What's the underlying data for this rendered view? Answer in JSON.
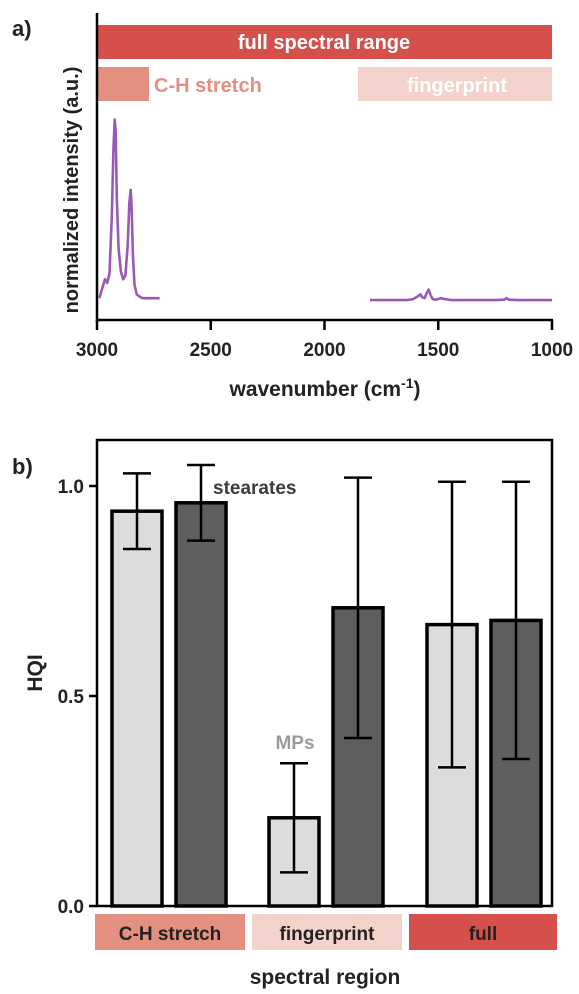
{
  "colors": {
    "full": "#d5504a",
    "ch": "#e49080",
    "fingerprint": "#f4d2cc",
    "spectrum": "#9b59b6",
    "mp_bar": "#dcdcdc",
    "stearate_bar": "#5d5f5e",
    "mp_label": "#9b9b9b",
    "stearate_label": "#3c3c3c"
  },
  "panel_a": {
    "label": "a)",
    "regions": {
      "full": "full spectral range",
      "ch": "C-H stretch",
      "fingerprint": "fingerprint"
    },
    "chart_data": {
      "type": "line",
      "xlabel": "wavenumber (cm",
      "xlabel_sup": "-1",
      "xlabel_close": ")",
      "ylabel": "normalized intensity (a.u.)",
      "xlim": [
        3000,
        1000
      ],
      "x_reversed": true,
      "xticks": [
        "3000",
        "2500",
        "2000",
        "1500",
        "1000"
      ],
      "yticks": [],
      "series": [
        {
          "x": [
            2990,
            2975,
            2965,
            2955,
            2945,
            2935,
            2928,
            2922,
            2918,
            2913,
            2905,
            2895,
            2885,
            2875,
            2865,
            2858,
            2852,
            2848,
            2842,
            2835,
            2825,
            2815,
            2800,
            2780,
            2760,
            2740,
            2725
          ],
          "y": [
            0.02,
            0.08,
            0.12,
            0.1,
            0.15,
            0.45,
            0.8,
            0.96,
            0.9,
            0.55,
            0.28,
            0.16,
            0.12,
            0.14,
            0.3,
            0.52,
            0.59,
            0.5,
            0.25,
            0.09,
            0.04,
            0.03,
            0.02,
            0.02,
            0.02,
            0.02,
            0.02
          ]
        },
        {
          "x": [
            1800,
            1760,
            1720,
            1680,
            1640,
            1610,
            1590,
            1578,
            1570,
            1560,
            1550,
            1542,
            1535,
            1525,
            1510,
            1490,
            1470,
            1440,
            1400,
            1350,
            1300,
            1250,
            1210,
            1200,
            1190,
            1150,
            1100,
            1050,
            1000
          ],
          "y": [
            0.01,
            0.01,
            0.01,
            0.01,
            0.01,
            0.015,
            0.03,
            0.04,
            0.025,
            0.02,
            0.05,
            0.065,
            0.04,
            0.015,
            0.012,
            0.02,
            0.015,
            0.01,
            0.01,
            0.01,
            0.01,
            0.01,
            0.012,
            0.02,
            0.012,
            0.01,
            0.01,
            0.01,
            0.01
          ]
        }
      ]
    }
  },
  "panel_b": {
    "label": "b)",
    "chart_data": {
      "type": "bar",
      "categories": [
        "C-H stretch",
        "fingerprint",
        "full"
      ],
      "series": [
        {
          "name": "MPs",
          "values": [
            0.94,
            0.21,
            0.67
          ],
          "errors": [
            0.09,
            0.13,
            0.34
          ]
        },
        {
          "name": "stearates",
          "values": [
            0.96,
            0.71,
            0.68
          ],
          "errors": [
            0.09,
            0.31,
            0.33
          ]
        }
      ],
      "ylabel": "HQI",
      "xlabel": "spectral region",
      "ylim": [
        0,
        1.1
      ],
      "yticks": [
        "0.0",
        "0.5",
        "1.0"
      ]
    }
  }
}
